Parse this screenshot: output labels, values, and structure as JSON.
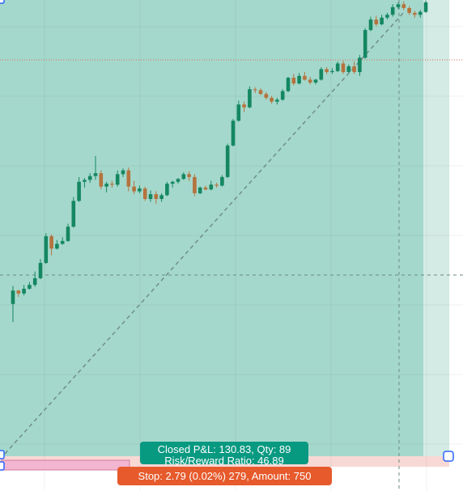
{
  "tool": {
    "closed_pnl_text": "Closed P&L: 130.83, Qty: 89",
    "risk_reward_text": "Risk/Reward Ratio: 46.89",
    "stop_text": "Stop: 2.79 (0.02%) 279, Amount: 750"
  },
  "colors": {
    "profit_zone": "#a5d8cc",
    "profit_zone_light": "#d3eae5",
    "loss_zone": "#f8d8d4",
    "candle_up": "#148761",
    "candle_down": "#b5733e",
    "pnl_label_bg": "#089981",
    "stop_label_bg": "#e65a2c",
    "crosshair": "#6b8a83",
    "target_line": "#d96a5a"
  },
  "chart_data": {
    "type": "candlestick",
    "candles": [
      {
        "o": 38.0,
        "h": 41.8,
        "l": 34.2,
        "c": 40.8
      },
      {
        "o": 40.8,
        "h": 41.0,
        "l": 39.5,
        "c": 40.2
      },
      {
        "o": 40.2,
        "h": 42.0,
        "l": 39.8,
        "c": 41.2
      },
      {
        "o": 41.2,
        "h": 42.6,
        "l": 41.0,
        "c": 42.0
      },
      {
        "o": 42.0,
        "h": 44.8,
        "l": 41.6,
        "c": 43.4
      },
      {
        "o": 43.4,
        "h": 47.4,
        "l": 43.2,
        "c": 46.6
      },
      {
        "o": 46.6,
        "h": 52.8,
        "l": 46.4,
        "c": 52.2
      },
      {
        "o": 52.2,
        "h": 52.6,
        "l": 48.2,
        "c": 49.6
      },
      {
        "o": 49.6,
        "h": 51.4,
        "l": 49.4,
        "c": 50.6
      },
      {
        "o": 50.6,
        "h": 52.0,
        "l": 50.4,
        "c": 51.2
      },
      {
        "o": 51.2,
        "h": 54.8,
        "l": 51.0,
        "c": 54.2
      },
      {
        "o": 54.2,
        "h": 60.4,
        "l": 54.0,
        "c": 59.6
      },
      {
        "o": 59.6,
        "h": 64.6,
        "l": 59.4,
        "c": 63.6
      },
      {
        "o": 63.6,
        "h": 64.4,
        "l": 62.4,
        "c": 64.0
      },
      {
        "o": 64.0,
        "h": 65.4,
        "l": 63.4,
        "c": 64.8
      },
      {
        "o": 64.8,
        "h": 69.0,
        "l": 64.0,
        "c": 65.4
      },
      {
        "o": 65.4,
        "h": 66.0,
        "l": 62.0,
        "c": 62.6
      },
      {
        "o": 62.6,
        "h": 63.6,
        "l": 61.4,
        "c": 63.2
      },
      {
        "o": 63.2,
        "h": 63.8,
        "l": 62.4,
        "c": 63.0
      },
      {
        "o": 63.0,
        "h": 66.0,
        "l": 62.6,
        "c": 65.2
      },
      {
        "o": 65.2,
        "h": 66.4,
        "l": 64.6,
        "c": 66.0
      },
      {
        "o": 66.0,
        "h": 66.6,
        "l": 61.6,
        "c": 62.6
      },
      {
        "o": 62.6,
        "h": 63.8,
        "l": 61.0,
        "c": 61.6
      },
      {
        "o": 61.6,
        "h": 62.8,
        "l": 61.2,
        "c": 62.2
      },
      {
        "o": 62.2,
        "h": 62.6,
        "l": 59.6,
        "c": 60.0
      },
      {
        "o": 60.0,
        "h": 61.8,
        "l": 59.4,
        "c": 61.0
      },
      {
        "o": 61.0,
        "h": 61.6,
        "l": 59.0,
        "c": 60.0
      },
      {
        "o": 60.0,
        "h": 61.2,
        "l": 59.4,
        "c": 60.8
      },
      {
        "o": 60.8,
        "h": 63.6,
        "l": 60.6,
        "c": 63.2
      },
      {
        "o": 63.2,
        "h": 63.8,
        "l": 62.4,
        "c": 63.6
      },
      {
        "o": 63.6,
        "h": 64.4,
        "l": 63.2,
        "c": 64.2
      },
      {
        "o": 64.2,
        "h": 65.6,
        "l": 64.0,
        "c": 65.2
      },
      {
        "o": 65.2,
        "h": 65.8,
        "l": 63.8,
        "c": 64.6
      },
      {
        "o": 64.6,
        "h": 65.2,
        "l": 60.6,
        "c": 61.2
      },
      {
        "o": 61.2,
        "h": 62.6,
        "l": 61.0,
        "c": 62.4
      },
      {
        "o": 62.4,
        "h": 62.8,
        "l": 61.8,
        "c": 62.0
      },
      {
        "o": 62.0,
        "h": 63.8,
        "l": 61.8,
        "c": 63.0
      },
      {
        "o": 63.0,
        "h": 63.4,
        "l": 62.4,
        "c": 62.8
      },
      {
        "o": 62.8,
        "h": 65.0,
        "l": 62.6,
        "c": 64.6
      },
      {
        "o": 64.6,
        "h": 71.6,
        "l": 64.4,
        "c": 71.2
      },
      {
        "o": 71.2,
        "h": 76.8,
        "l": 71.0,
        "c": 76.4
      },
      {
        "o": 76.4,
        "h": 80.6,
        "l": 76.2,
        "c": 79.8
      },
      {
        "o": 79.8,
        "h": 80.4,
        "l": 78.2,
        "c": 79.2
      },
      {
        "o": 79.2,
        "h": 83.6,
        "l": 79.0,
        "c": 83.0
      },
      {
        "o": 83.0,
        "h": 83.4,
        "l": 82.2,
        "c": 82.8
      },
      {
        "o": 82.8,
        "h": 83.2,
        "l": 81.8,
        "c": 82.0
      },
      {
        "o": 82.0,
        "h": 82.4,
        "l": 80.8,
        "c": 81.2
      },
      {
        "o": 81.2,
        "h": 81.6,
        "l": 80.0,
        "c": 80.4
      },
      {
        "o": 80.4,
        "h": 81.2,
        "l": 79.8,
        "c": 80.8
      },
      {
        "o": 80.8,
        "h": 83.0,
        "l": 80.6,
        "c": 82.6
      },
      {
        "o": 82.6,
        "h": 85.6,
        "l": 82.4,
        "c": 85.4
      },
      {
        "o": 85.4,
        "h": 86.2,
        "l": 83.8,
        "c": 84.2
      },
      {
        "o": 84.2,
        "h": 86.4,
        "l": 84.0,
        "c": 85.8
      },
      {
        "o": 85.8,
        "h": 86.6,
        "l": 84.8,
        "c": 85.0
      },
      {
        "o": 85.0,
        "h": 85.6,
        "l": 84.0,
        "c": 84.4
      },
      {
        "o": 84.4,
        "h": 85.2,
        "l": 84.0,
        "c": 85.0
      },
      {
        "o": 85.0,
        "h": 87.6,
        "l": 84.8,
        "c": 87.2
      },
      {
        "o": 87.2,
        "h": 87.6,
        "l": 86.2,
        "c": 86.6
      },
      {
        "o": 86.6,
        "h": 87.4,
        "l": 86.2,
        "c": 86.8
      },
      {
        "o": 86.8,
        "h": 88.8,
        "l": 86.6,
        "c": 88.4
      },
      {
        "o": 88.4,
        "h": 89.0,
        "l": 86.2,
        "c": 86.6
      },
      {
        "o": 86.6,
        "h": 88.2,
        "l": 86.4,
        "c": 87.8
      },
      {
        "o": 87.8,
        "h": 88.8,
        "l": 86.2,
        "c": 86.6
      },
      {
        "o": 86.6,
        "h": 90.2,
        "l": 85.8,
        "c": 89.6
      },
      {
        "o": 89.6,
        "h": 95.8,
        "l": 89.4,
        "c": 95.4
      },
      {
        "o": 95.4,
        "h": 98.2,
        "l": 95.2,
        "c": 97.6
      },
      {
        "o": 97.6,
        "h": 98.4,
        "l": 96.2,
        "c": 96.6
      },
      {
        "o": 96.6,
        "h": 98.6,
        "l": 96.4,
        "c": 98.0
      },
      {
        "o": 98.0,
        "h": 99.0,
        "l": 97.6,
        "c": 98.6
      },
      {
        "o": 98.6,
        "h": 100.8,
        "l": 98.2,
        "c": 100.2
      },
      {
        "o": 100.2,
        "h": 101.2,
        "l": 99.8,
        "c": 100.8
      },
      {
        "o": 100.8,
        "h": 101.4,
        "l": 99.6,
        "c": 100.0
      },
      {
        "o": 100.0,
        "h": 100.4,
        "l": 98.6,
        "c": 99.0
      },
      {
        "o": 99.0,
        "h": 99.4,
        "l": 98.0,
        "c": 98.6
      },
      {
        "o": 98.6,
        "h": 99.6,
        "l": 98.0,
        "c": 99.2
      },
      {
        "o": 99.2,
        "h": 101.6,
        "l": 99.0,
        "c": 101.2
      }
    ]
  }
}
